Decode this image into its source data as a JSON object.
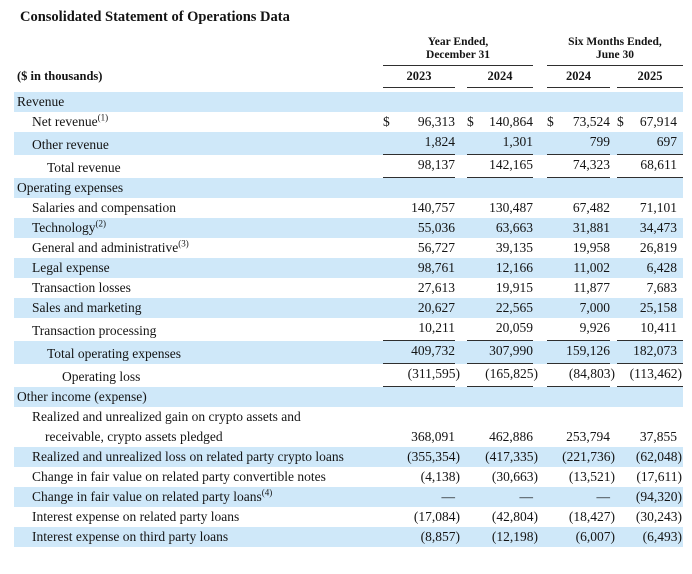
{
  "title": "Consolidated Statement of Operations Data",
  "table": {
    "units_label": "($ in thousands)",
    "col_groups": [
      {
        "line1": "Year Ended,",
        "line2": "December 31"
      },
      {
        "line1": "Six Months Ended,",
        "line2": "June 30"
      }
    ],
    "year_columns": [
      "2023",
      "2024",
      "2024",
      "2025"
    ],
    "rows": [
      {
        "label": "Revenue",
        "type": "section",
        "indent": 0,
        "values": [
          "",
          "",
          "",
          ""
        ]
      },
      {
        "label": "Net revenue",
        "sup": "(1)",
        "indent": 1,
        "dollar": true,
        "values": [
          "96,313",
          "140,864",
          "73,524",
          "67,914"
        ]
      },
      {
        "label": "Other revenue",
        "indent": 1,
        "underline": true,
        "values": [
          "1,824",
          "1,301",
          "799",
          "697"
        ]
      },
      {
        "label": "Total revenue",
        "indent": 2,
        "underline": true,
        "values": [
          "98,137",
          "142,165",
          "74,323",
          "68,611"
        ]
      },
      {
        "label": "Operating expenses",
        "type": "section",
        "indent": 0,
        "values": [
          "",
          "",
          "",
          ""
        ]
      },
      {
        "label": "Salaries and compensation",
        "indent": 1,
        "values": [
          "140,757",
          "130,487",
          "67,482",
          "71,101"
        ]
      },
      {
        "label": "Technology",
        "sup": "(2)",
        "indent": 1,
        "values": [
          "55,036",
          "63,663",
          "31,881",
          "34,473"
        ]
      },
      {
        "label": "General and administrative",
        "sup": "(3)",
        "indent": 1,
        "values": [
          "56,727",
          "39,135",
          "19,958",
          "26,819"
        ]
      },
      {
        "label": "Legal expense",
        "indent": 1,
        "values": [
          "98,761",
          "12,166",
          "11,002",
          "6,428"
        ]
      },
      {
        "label": "Transaction losses",
        "indent": 1,
        "values": [
          "27,613",
          "19,915",
          "11,877",
          "7,683"
        ]
      },
      {
        "label": "Sales and marketing",
        "indent": 1,
        "values": [
          "20,627",
          "22,565",
          "7,000",
          "25,158"
        ]
      },
      {
        "label": "Transaction processing",
        "indent": 1,
        "underline": true,
        "values": [
          "10,211",
          "20,059",
          "9,926",
          "10,411"
        ]
      },
      {
        "label": "Total operating expenses",
        "indent": 2,
        "underline": true,
        "values": [
          "409,732",
          "307,990",
          "159,126",
          "182,073"
        ]
      },
      {
        "label": "Operating loss",
        "indent": 3,
        "underline": true,
        "values": [
          "(311,595)",
          "(165,825)",
          "(84,803)",
          "(113,462)"
        ]
      },
      {
        "label": "Other income (expense)",
        "type": "section",
        "indent": 0,
        "values": [
          "",
          "",
          "",
          ""
        ]
      },
      {
        "label": "Realized and unrealized gain on crypto assets and receivable, crypto assets pledged",
        "indent": 1,
        "values": [
          "368,091",
          "462,886",
          "253,794",
          "37,855"
        ]
      },
      {
        "label": "Realized and unrealized loss on related party crypto loans",
        "indent": 1,
        "values": [
          "(355,354)",
          "(417,335)",
          "(221,736)",
          "(62,048)"
        ]
      },
      {
        "label": "Change in fair value on related party convertible notes",
        "indent": 1,
        "values": [
          "(4,138)",
          "(30,663)",
          "(13,521)",
          "(17,611)"
        ]
      },
      {
        "label": "Change in fair value on related party loans",
        "sup": "(4)",
        "indent": 1,
        "values": [
          "—",
          "—",
          "—",
          "(94,320)"
        ]
      },
      {
        "label": "Interest expense on related party loans",
        "indent": 1,
        "values": [
          "(17,084)",
          "(42,804)",
          "(18,427)",
          "(30,243)"
        ]
      },
      {
        "label": "Interest expense on third party loans",
        "indent": 1,
        "values": [
          "(8,857)",
          "(12,198)",
          "(6,007)",
          "(6,493)"
        ]
      }
    ]
  },
  "colors": {
    "shaded_row": "#cfe8f9",
    "rule": "#2f2f2f",
    "text": "#141414"
  }
}
